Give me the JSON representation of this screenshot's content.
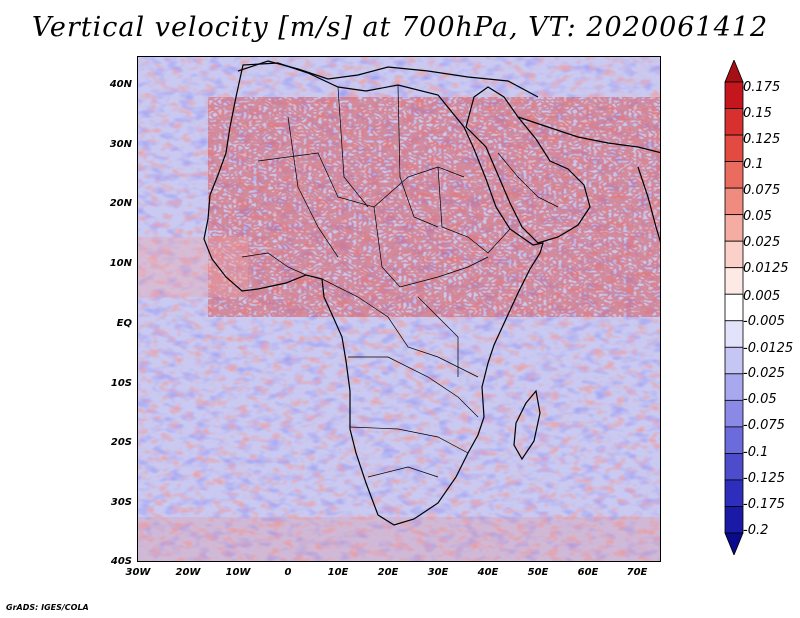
{
  "title": "Vertical velocity [m/s] at 700hPa, VT: 2020061412",
  "footer": "GrADS: IGES/COLA",
  "map": {
    "lon_range": [
      -30,
      75
    ],
    "lat_range": [
      -40,
      45
    ],
    "y_ticks": [
      "40N",
      "30N",
      "20N",
      "10N",
      "EQ",
      "10S",
      "20S",
      "30S",
      "40S"
    ],
    "x_ticks": [
      "30W",
      "20W",
      "10W",
      "0",
      "10E",
      "20E",
      "30E",
      "40E",
      "50E",
      "60E",
      "70E"
    ]
  },
  "colorbar": {
    "labels": [
      "0.175",
      "0.15",
      "0.125",
      "0.1",
      "0.075",
      "0.05",
      "0.025",
      "0.0125",
      "0.005",
      "-0.005",
      "-0.0125",
      "-0.025",
      "-0.05",
      "-0.075",
      "-0.1",
      "-0.125",
      "-0.175",
      "-0.2"
    ],
    "colors": [
      "#a50f15",
      "#c4161c",
      "#d7302f",
      "#e24a42",
      "#ea6c5f",
      "#f08b80",
      "#f5aca2",
      "#fad0c9",
      "#fdeae6",
      "#ffffff",
      "#e2e2fb",
      "#c6c6f5",
      "#a8a8ee",
      "#8a8ae6",
      "#6b6bdb",
      "#4c4ccd",
      "#2e2ebc",
      "#1a1aa6",
      "#0a0a8c"
    ]
  }
}
